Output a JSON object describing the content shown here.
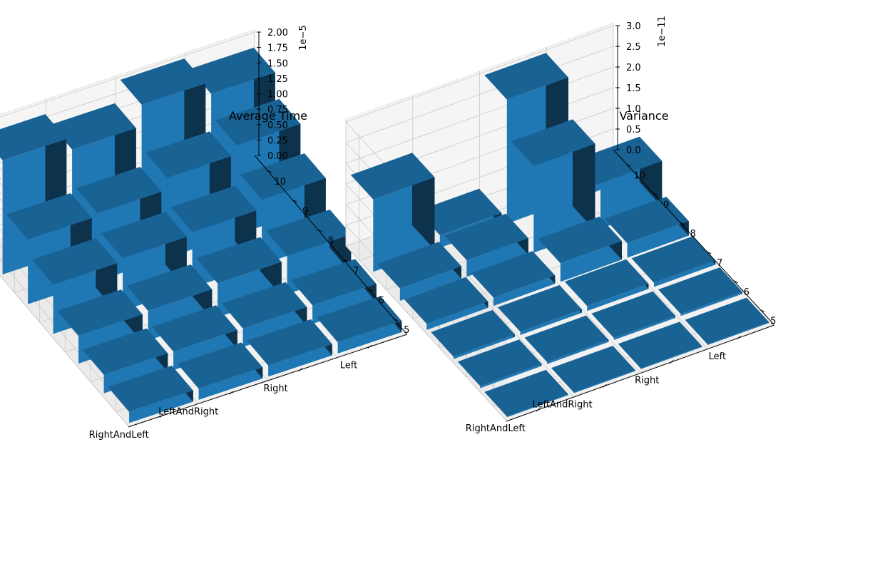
{
  "chart_data": [
    {
      "type": "bar3d",
      "title": "Average Time",
      "x_categories": [
        "Left",
        "Right",
        "LeftAndRight",
        "RightAndLeft"
      ],
      "y_ticks": [
        "5",
        "6",
        "7",
        "8",
        "9",
        "10"
      ],
      "z_ticks": [
        "0.00",
        "0.25",
        "0.50",
        "0.75",
        "1.00",
        "1.25",
        "1.50",
        "1.75",
        "2.00"
      ],
      "z_offset_label": "1e−5",
      "zlim": [
        0,
        2.0
      ],
      "scale": "1e-5",
      "y_values": [
        5,
        6,
        7,
        8,
        9,
        10
      ],
      "grid": true,
      "bar_color": "#1f77b4",
      "values": [
        [
          0.18,
          0.3,
          0.62,
          1.05,
          1.45,
          1.8
        ],
        [
          0.18,
          0.3,
          0.55,
          0.9,
          1.3,
          2.0
        ],
        [
          0.18,
          0.3,
          0.48,
          0.85,
          1.1,
          1.65
        ],
        [
          0.18,
          0.3,
          0.45,
          0.8,
          1.05,
          1.85
        ]
      ]
    },
    {
      "type": "bar3d",
      "title": "Variance",
      "x_categories": [
        "Left",
        "Right",
        "LeftAndRight",
        "RightAndLeft"
      ],
      "y_ticks": [
        "5",
        "6",
        "7",
        "8",
        "9",
        "10"
      ],
      "z_ticks": [
        "0.0",
        "0.5",
        "1.0",
        "1.5",
        "2.0",
        "2.5",
        "3.0"
      ],
      "z_offset_label": "1e−11",
      "zlim": [
        0,
        3.0
      ],
      "scale": "1e-11",
      "y_values": [
        5,
        6,
        7,
        8,
        9,
        10
      ],
      "grid": true,
      "bar_color": "#1f77b4",
      "values": [
        [
          0.02,
          0.05,
          0.1,
          0.35,
          1.1,
          0.15
        ],
        [
          0.02,
          0.05,
          0.12,
          0.45,
          2.1,
          3.0
        ],
        [
          0.02,
          0.05,
          0.08,
          0.2,
          0.4,
          0.3
        ],
        [
          0.02,
          0.05,
          0.06,
          0.15,
          0.3,
          1.75
        ]
      ]
    }
  ]
}
